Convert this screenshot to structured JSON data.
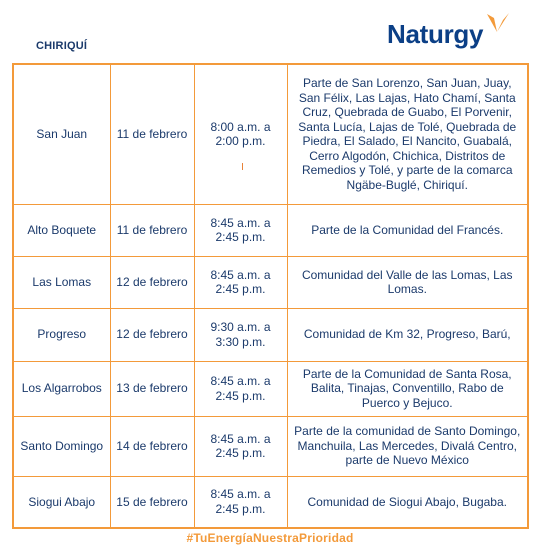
{
  "region": "CHIRIQUÍ",
  "brand": {
    "name": "Naturgy",
    "color": "#0b3f86",
    "accent": "#f39a3a"
  },
  "rows": [
    {
      "place": "San Juan",
      "date": "11 de febrero",
      "time": "8:00 a.m. a\n2:00 p.m.",
      "area": "Parte de San Lorenzo, San Juan, Juay, San Félix, Las Lajas, Hato Chamí, Santa Cruz, Quebrada de Guabo, El Porvenir, Santa Lucía, Lajas de Tolé, Quebrada de Piedra, El Salado, El Nancito, Guabalá, Cerro Algodón, Chichica, Distritos de Remedios y Tolé,  y parte de la comarca Ngäbe-Buglé, Chiriquí."
    },
    {
      "place": "Alto Boquete",
      "date": "11 de febrero",
      "time": "8:45 a.m. a\n2:45 p.m.",
      "area": "Parte de la Comunidad del Francés."
    },
    {
      "place": "Las Lomas",
      "date": "12 de febrero",
      "time": "8:45 a.m. a\n2:45 p.m.",
      "area": "Comunidad del Valle de las Lomas, Las Lomas."
    },
    {
      "place": "Progreso",
      "date": "12 de febrero",
      "time": "9:30 a.m. a\n3:30 p.m.",
      "area": "Comunidad de Km 32, Progreso, Barú,"
    },
    {
      "place": "Los Algarrobos",
      "date": "13 de febrero",
      "time": "8:45 a.m. a\n2:45 p.m.",
      "area": "Parte de la Comunidad de Santa Rosa, Balita, Tinajas, Conventillo, Rabo de Puerco y Bejuco."
    },
    {
      "place": "Santo Domingo",
      "date": "14 de febrero",
      "time": "8:45 a.m. a\n2:45 p.m.",
      "area": "Parte de la comunidad de Santo Domingo, Manchuila, Las Mercedes, Divalá Centro, parte de Nuevo México"
    },
    {
      "place": "Siogui Abajo",
      "date": "15 de febrero",
      "time": "8:45 a.m. a\n2:45 p.m.",
      "area": "Comunidad de Siogui Abajo, Bugaba."
    }
  ],
  "hashtag": "#TuEnergíaNuestraPrioridad"
}
